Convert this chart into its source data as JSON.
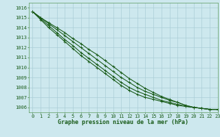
{
  "xlabel": "Graphe pression niveau de la mer (hPa)",
  "ylim": [
    1005.5,
    1016.5
  ],
  "xlim": [
    -0.5,
    23
  ],
  "yticks": [
    1006,
    1007,
    1008,
    1009,
    1010,
    1011,
    1012,
    1013,
    1014,
    1015,
    1016
  ],
  "xticks": [
    0,
    1,
    2,
    3,
    4,
    5,
    6,
    7,
    8,
    9,
    10,
    11,
    12,
    13,
    14,
    15,
    16,
    17,
    18,
    19,
    20,
    21,
    22,
    23
  ],
  "background_color": "#cde8ee",
  "grid_color": "#aacdd6",
  "line_color": "#1a5c1a",
  "series": [
    [
      1015.6,
      1015.0,
      1014.5,
      1014.0,
      1013.5,
      1012.9,
      1012.4,
      1011.8,
      1011.3,
      1010.7,
      1010.1,
      1009.5,
      1008.9,
      1008.4,
      1007.9,
      1007.5,
      1007.1,
      1006.8,
      1006.5,
      1006.2,
      1006.0,
      1005.9,
      1005.8,
      1005.8
    ],
    [
      1015.6,
      1015.0,
      1014.4,
      1013.8,
      1013.2,
      1012.6,
      1012.0,
      1011.4,
      1010.8,
      1010.2,
      1009.6,
      1009.0,
      1008.5,
      1008.0,
      1007.6,
      1007.3,
      1007.0,
      1006.7,
      1006.5,
      1006.2,
      1006.0,
      1005.9,
      1005.8,
      1005.8
    ],
    [
      1015.6,
      1014.9,
      1014.2,
      1013.5,
      1012.8,
      1012.2,
      1011.5,
      1010.9,
      1010.3,
      1009.7,
      1009.1,
      1008.5,
      1008.0,
      1007.6,
      1007.3,
      1007.0,
      1006.7,
      1006.5,
      1006.3,
      1006.1,
      1006.0,
      1005.9,
      1005.8,
      1005.8
    ],
    [
      1015.6,
      1014.8,
      1014.0,
      1013.3,
      1012.6,
      1011.9,
      1011.2,
      1010.6,
      1010.0,
      1009.4,
      1008.8,
      1008.2,
      1007.7,
      1007.3,
      1007.0,
      1006.8,
      1006.6,
      1006.4,
      1006.2,
      1006.1,
      1006.0,
      1005.9,
      1005.8,
      1005.8
    ]
  ],
  "marker": "+",
  "marker_size": 3,
  "line_width": 0.8,
  "tick_fontsize": 5,
  "label_fontsize": 6,
  "tick_color": "#1a5c1a",
  "label_color": "#1a5c1a",
  "spine_color": "#5a9a5a"
}
